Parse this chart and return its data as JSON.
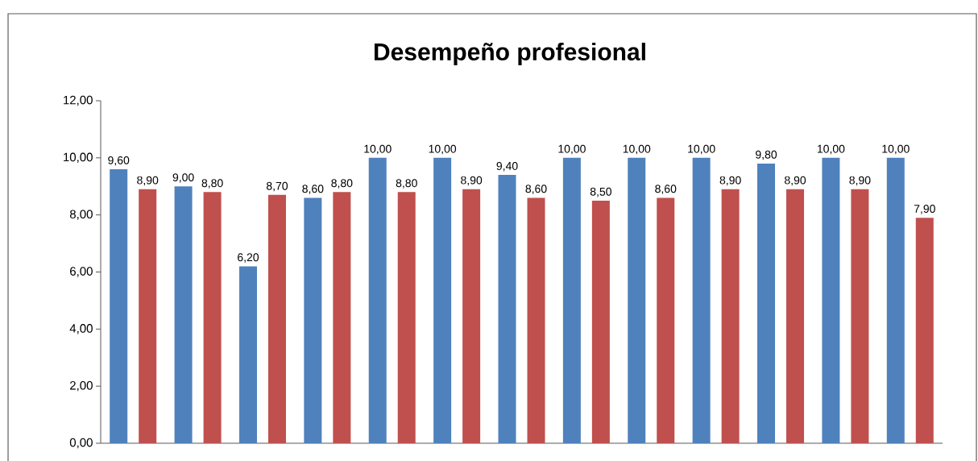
{
  "chart_data": {
    "type": "bar",
    "title": "Desempeño profesional",
    "categories": [
      null,
      null,
      null,
      null,
      null,
      null,
      null,
      null,
      null,
      null,
      null,
      null,
      null
    ],
    "series": [
      {
        "color": "#4f81bd",
        "values": [
          9.6,
          9.0,
          6.2,
          8.6,
          10.0,
          10.0,
          9.4,
          10.0,
          10.0,
          10.0,
          9.8,
          10.0,
          10.0
        ],
        "value_labels": [
          "9,60",
          "9,00",
          "6,20",
          "8,60",
          "10,00",
          "10,00",
          "9,40",
          "10,00",
          "10,00",
          "10,00",
          "9,80",
          "10,00",
          "10,00"
        ]
      },
      {
        "color": "#c0504d",
        "values": [
          8.9,
          8.8,
          8.7,
          8.8,
          8.8,
          8.9,
          8.6,
          8.5,
          8.6,
          8.9,
          8.9,
          8.9,
          7.9
        ],
        "value_labels": [
          "8,90",
          "8,80",
          "8,70",
          "8,80",
          "8,80",
          "8,90",
          "8,60",
          "8,50",
          "8,60",
          "8,90",
          "8,90",
          "8,90",
          "7,90"
        ]
      }
    ],
    "ylim": [
      0,
      12
    ],
    "yticks": [
      {
        "value": 0,
        "label": "0,00"
      },
      {
        "value": 2,
        "label": "2,00"
      },
      {
        "value": 4,
        "label": "4,00"
      },
      {
        "value": 6,
        "label": "6,00"
      },
      {
        "value": 8,
        "label": "8,00"
      },
      {
        "value": 10,
        "label": "10,00"
      },
      {
        "value": 12,
        "label": "12,00"
      }
    ],
    "grid": false
  }
}
